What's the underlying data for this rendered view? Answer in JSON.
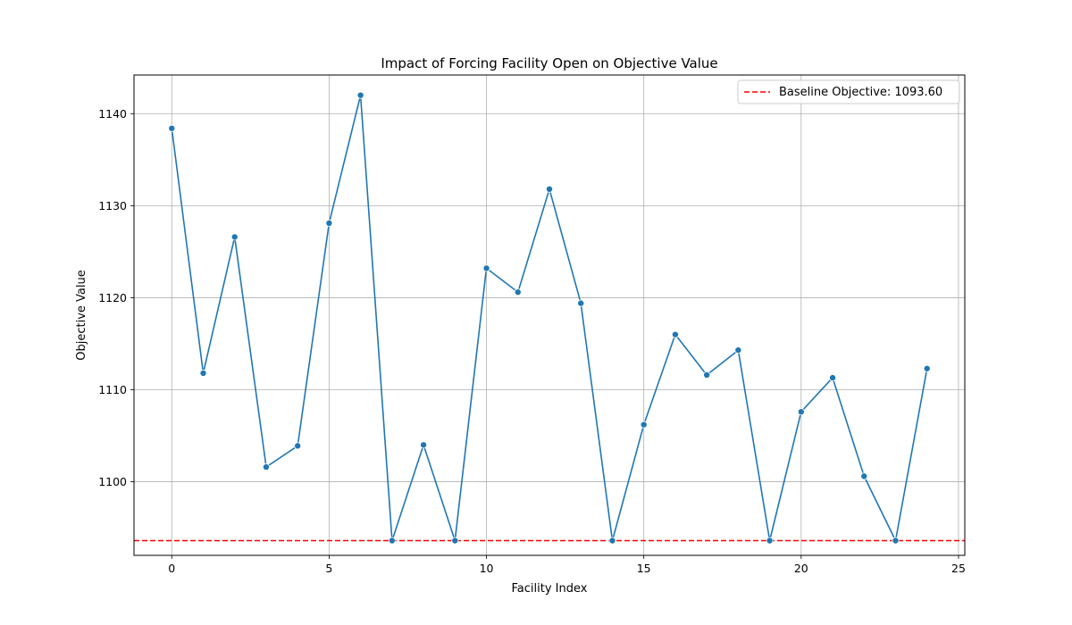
{
  "chart_data": {
    "type": "line",
    "title": "Impact of Forcing Facility Open on Objective Value",
    "xlabel": "Facility Index",
    "ylabel": "Objective Value",
    "xlim": [
      -1.2,
      25.2
    ],
    "ylim": [
      1092.0,
      1144.2
    ],
    "xticks": [
      0,
      5,
      10,
      15,
      20,
      25
    ],
    "yticks": [
      1100,
      1110,
      1120,
      1130,
      1140
    ],
    "grid": true,
    "legend_position": "top-right",
    "series": [
      {
        "color": "#1f77b4",
        "marker": "circle",
        "x": [
          0,
          1,
          2,
          3,
          4,
          5,
          6,
          7,
          8,
          9,
          10,
          11,
          12,
          13,
          14,
          15,
          16,
          17,
          18,
          19,
          20,
          21,
          22,
          23,
          24
        ],
        "y": [
          1138.4,
          1111.8,
          1126.6,
          1101.6,
          1103.9,
          1128.1,
          1142.0,
          1093.6,
          1104.0,
          1093.6,
          1123.2,
          1120.6,
          1131.8,
          1119.4,
          1093.6,
          1106.2,
          1116.0,
          1111.6,
          1114.3,
          1093.6,
          1107.6,
          1111.3,
          1100.6,
          1093.6,
          1112.3
        ]
      }
    ],
    "reference_lines": [
      {
        "name": "Baseline Objective: 1093.60",
        "y": 1093.6,
        "color": "#ff0000",
        "style": "dashed"
      }
    ]
  }
}
